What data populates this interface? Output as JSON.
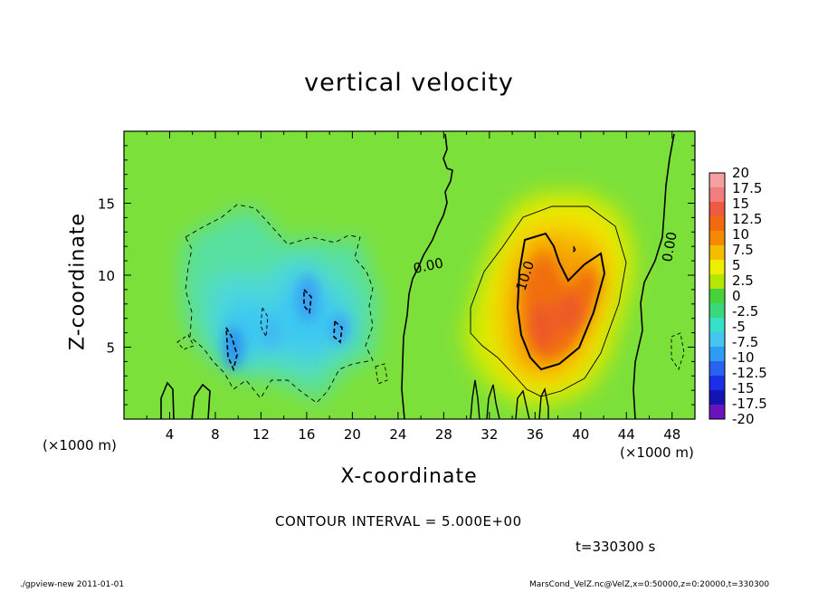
{
  "chart_data": {
    "type": "heatmap",
    "title": "vertical velocity",
    "xlabel": "X-coordinate",
    "ylabel": "Z-coordinate",
    "x_unit_label": "(×1000 m)",
    "xlim": [
      0,
      50
    ],
    "ylim": [
      0,
      20
    ],
    "x_ticks": [
      "4",
      "8",
      "12",
      "16",
      "20",
      "24",
      "28",
      "32",
      "36",
      "40",
      "44",
      "48"
    ],
    "y_ticks": [
      "5",
      "10",
      "15"
    ],
    "colorbar": {
      "levels": [
        "20",
        "17.5",
        "15",
        "12.5",
        "10",
        "7.5",
        "5",
        "2.5",
        "0",
        "-2.5",
        "-5",
        "-7.5",
        "-10",
        "-12.5",
        "-15",
        "-17.5",
        "-20"
      ],
      "colors": [
        "#f5a0a0",
        "#f27d7d",
        "#ee5a40",
        "#f06a10",
        "#f58a00",
        "#f5bd00",
        "#f0ee00",
        "#b5e600",
        "#46d23c",
        "#3ad87a",
        "#36dfc8",
        "#46c6ee",
        "#2e9cf5",
        "#2a62f0",
        "#1a2fe8",
        "#1414b5",
        "#6a14bd"
      ]
    },
    "contour_interval_text": "CONTOUR INTERVAL = 5.000E+00",
    "contour_labels": [
      "0.00",
      "10.0",
      "0.00"
    ],
    "features": [
      {
        "name": "updraft",
        "x_center": 38,
        "z_center": 8,
        "max_value": 15
      },
      {
        "name": "downdraft",
        "x_center": 14,
        "z_center": 7,
        "min_value": -10
      }
    ],
    "time_text": "t=330300 s"
  },
  "footer": {
    "left": "./gpview-new   2011-01-01",
    "right": "MarsCond_VelZ.nc@VelZ,x=0:50000,z=0:20000,t=330300"
  }
}
